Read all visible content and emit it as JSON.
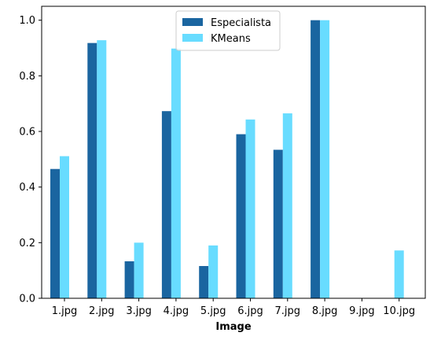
{
  "chart_data": {
    "type": "bar",
    "categories": [
      "1.jpg",
      "2.jpg",
      "3.jpg",
      "4.jpg",
      "5.jpg",
      "6.jpg",
      "7.jpg",
      "8.jpg",
      "9.jpg",
      "10.jpg"
    ],
    "series": [
      {
        "name": "Especialista",
        "color": "#1a65a0",
        "values": [
          0.465,
          0.918,
          0.133,
          0.673,
          0.116,
          0.59,
          0.534,
          1.0,
          0.0,
          0.0
        ]
      },
      {
        "name": "KMeans",
        "color": "#68dcff",
        "values": [
          0.511,
          0.928,
          0.2,
          0.898,
          0.19,
          0.643,
          0.665,
          1.0,
          0.0,
          0.172
        ]
      }
    ],
    "title": "",
    "xlabel": "Image",
    "ylabel": "",
    "ylim": [
      0,
      1.05
    ],
    "yticks": [
      0.0,
      0.2,
      0.4,
      0.6,
      0.8,
      1.0
    ],
    "ytick_labels": [
      "0.0",
      "0.2",
      "0.4",
      "0.6",
      "0.8",
      "1.0"
    ],
    "grid": false,
    "legend_position": "top-center"
  }
}
